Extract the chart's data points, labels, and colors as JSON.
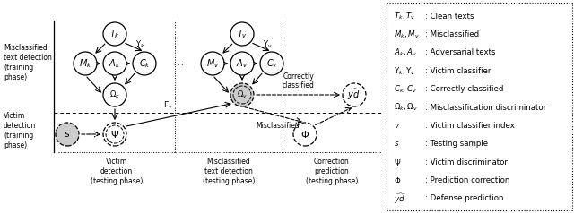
{
  "fig_width": 6.4,
  "fig_height": 2.38,
  "dpi": 100,
  "background": "#ffffff",
  "legend_entries": [
    [
      "$T_k, T_v$",
      ": Clean texts"
    ],
    [
      "$M_k, M_v$",
      ": Misclassified"
    ],
    [
      "$A_k, A_v$",
      ": Adversarial texts"
    ],
    [
      "$\\Upsilon_k, \\Upsilon_v$",
      ": Victim classifier"
    ],
    [
      "$C_k, C_v$",
      ": Correctly classified"
    ],
    [
      "$\\Omega_k, \\Omega_v$",
      ": Misclassification discriminator"
    ],
    [
      "$v$",
      ": Victim classifier index"
    ],
    [
      "$s$",
      ": Testing sample"
    ],
    [
      "$\\Psi$",
      ": Victim discriminator"
    ],
    [
      "$\\Phi$",
      ": Prediction correction"
    ],
    [
      "$\\widehat{yd}$",
      ": Defense prediction"
    ]
  ],
  "left_label_top": "Misclassified\ntext detection\n(training\nphase)",
  "left_label_bottom": "Victim\ndetection\n(training\nphase)",
  "bottom_labels": [
    "Victim\ndetection\n(testing phase)",
    "Misclassified\ntext detection\n(testing phase)",
    "Correction\nprediction\n(testing phase)"
  ]
}
